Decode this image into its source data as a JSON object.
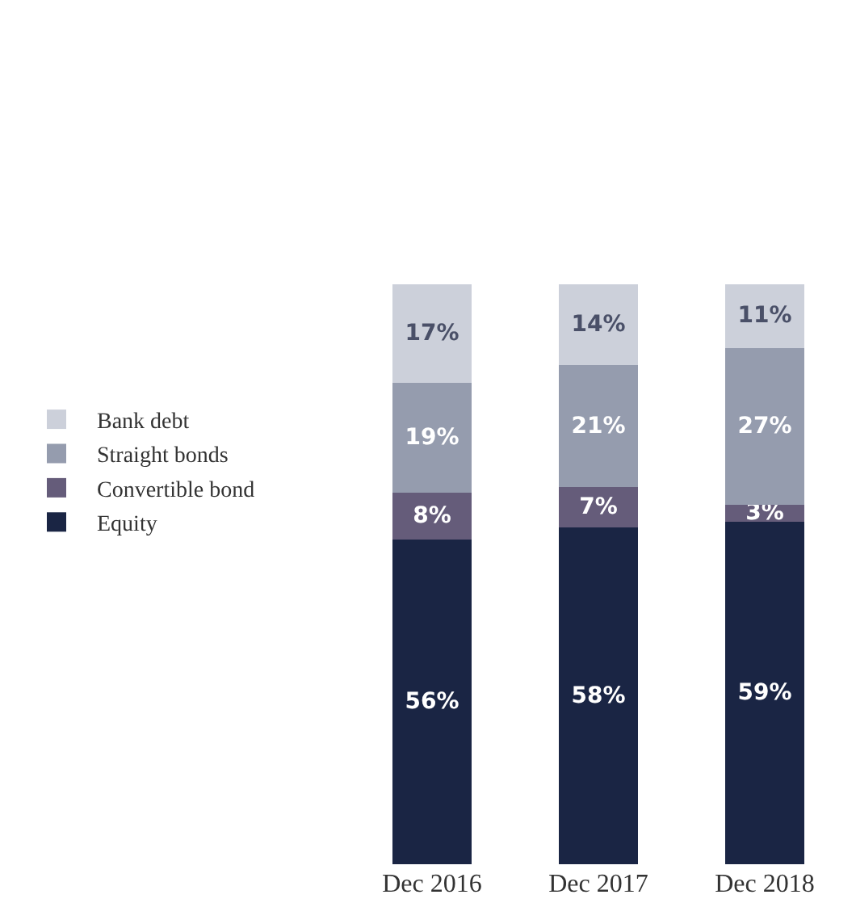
{
  "chart_data": {
    "type": "bar",
    "stacked": true,
    "categories": [
      "Dec 2016",
      "Dec 2017",
      "Dec 2018"
    ],
    "series": [
      {
        "name": "Equity",
        "color": "#1a2544",
        "values": [
          56,
          58,
          59
        ],
        "value_labels": [
          "56%",
          "58%",
          "59%"
        ]
      },
      {
        "name": "Convertible bond",
        "color": "#655c7a",
        "values": [
          8,
          7,
          3
        ],
        "value_labels": [
          "8%",
          "7%",
          "3%"
        ]
      },
      {
        "name": "Straight bonds",
        "color": "#959cae",
        "values": [
          19,
          21,
          27
        ],
        "value_labels": [
          "19%",
          "21%",
          "27%"
        ]
      },
      {
        "name": "Bank debt",
        "color": "#ccd0da",
        "values": [
          17,
          14,
          11
        ],
        "value_labels": [
          "17%",
          "14%",
          "11%"
        ]
      }
    ],
    "tick_labels": "x",
    "legend": "left"
  }
}
